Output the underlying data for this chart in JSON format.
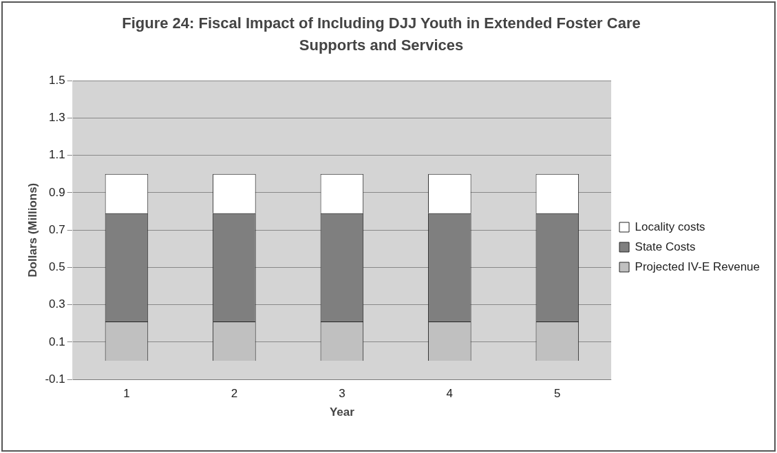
{
  "chart_data": {
    "type": "bar",
    "title": "Figure 24: Fiscal Impact of Including DJJ Youth in Extended Foster Care Supports and Services",
    "xlabel": "Year",
    "ylabel": "Dollars (Millions)",
    "categories": [
      "1",
      "2",
      "3",
      "4",
      "5"
    ],
    "stacked": true,
    "series": [
      {
        "name": "Projected IV-E Revenue",
        "color": "#c0c0c0",
        "values": [
          0.21,
          0.21,
          0.21,
          0.21,
          0.21
        ]
      },
      {
        "name": "State Costs",
        "color": "#7f7f7f",
        "values": [
          0.58,
          0.58,
          0.58,
          0.58,
          0.58
        ]
      },
      {
        "name": "Locality costs",
        "color": "#ffffff",
        "values": [
          0.21,
          0.21,
          0.21,
          0.21,
          0.21
        ]
      }
    ],
    "ylim": [
      -0.1,
      1.5
    ],
    "yticks": [
      -0.1,
      0.1,
      0.3,
      0.5,
      0.7,
      0.9,
      1.1,
      1.3,
      1.5
    ],
    "grid": "y",
    "legend": "right"
  }
}
